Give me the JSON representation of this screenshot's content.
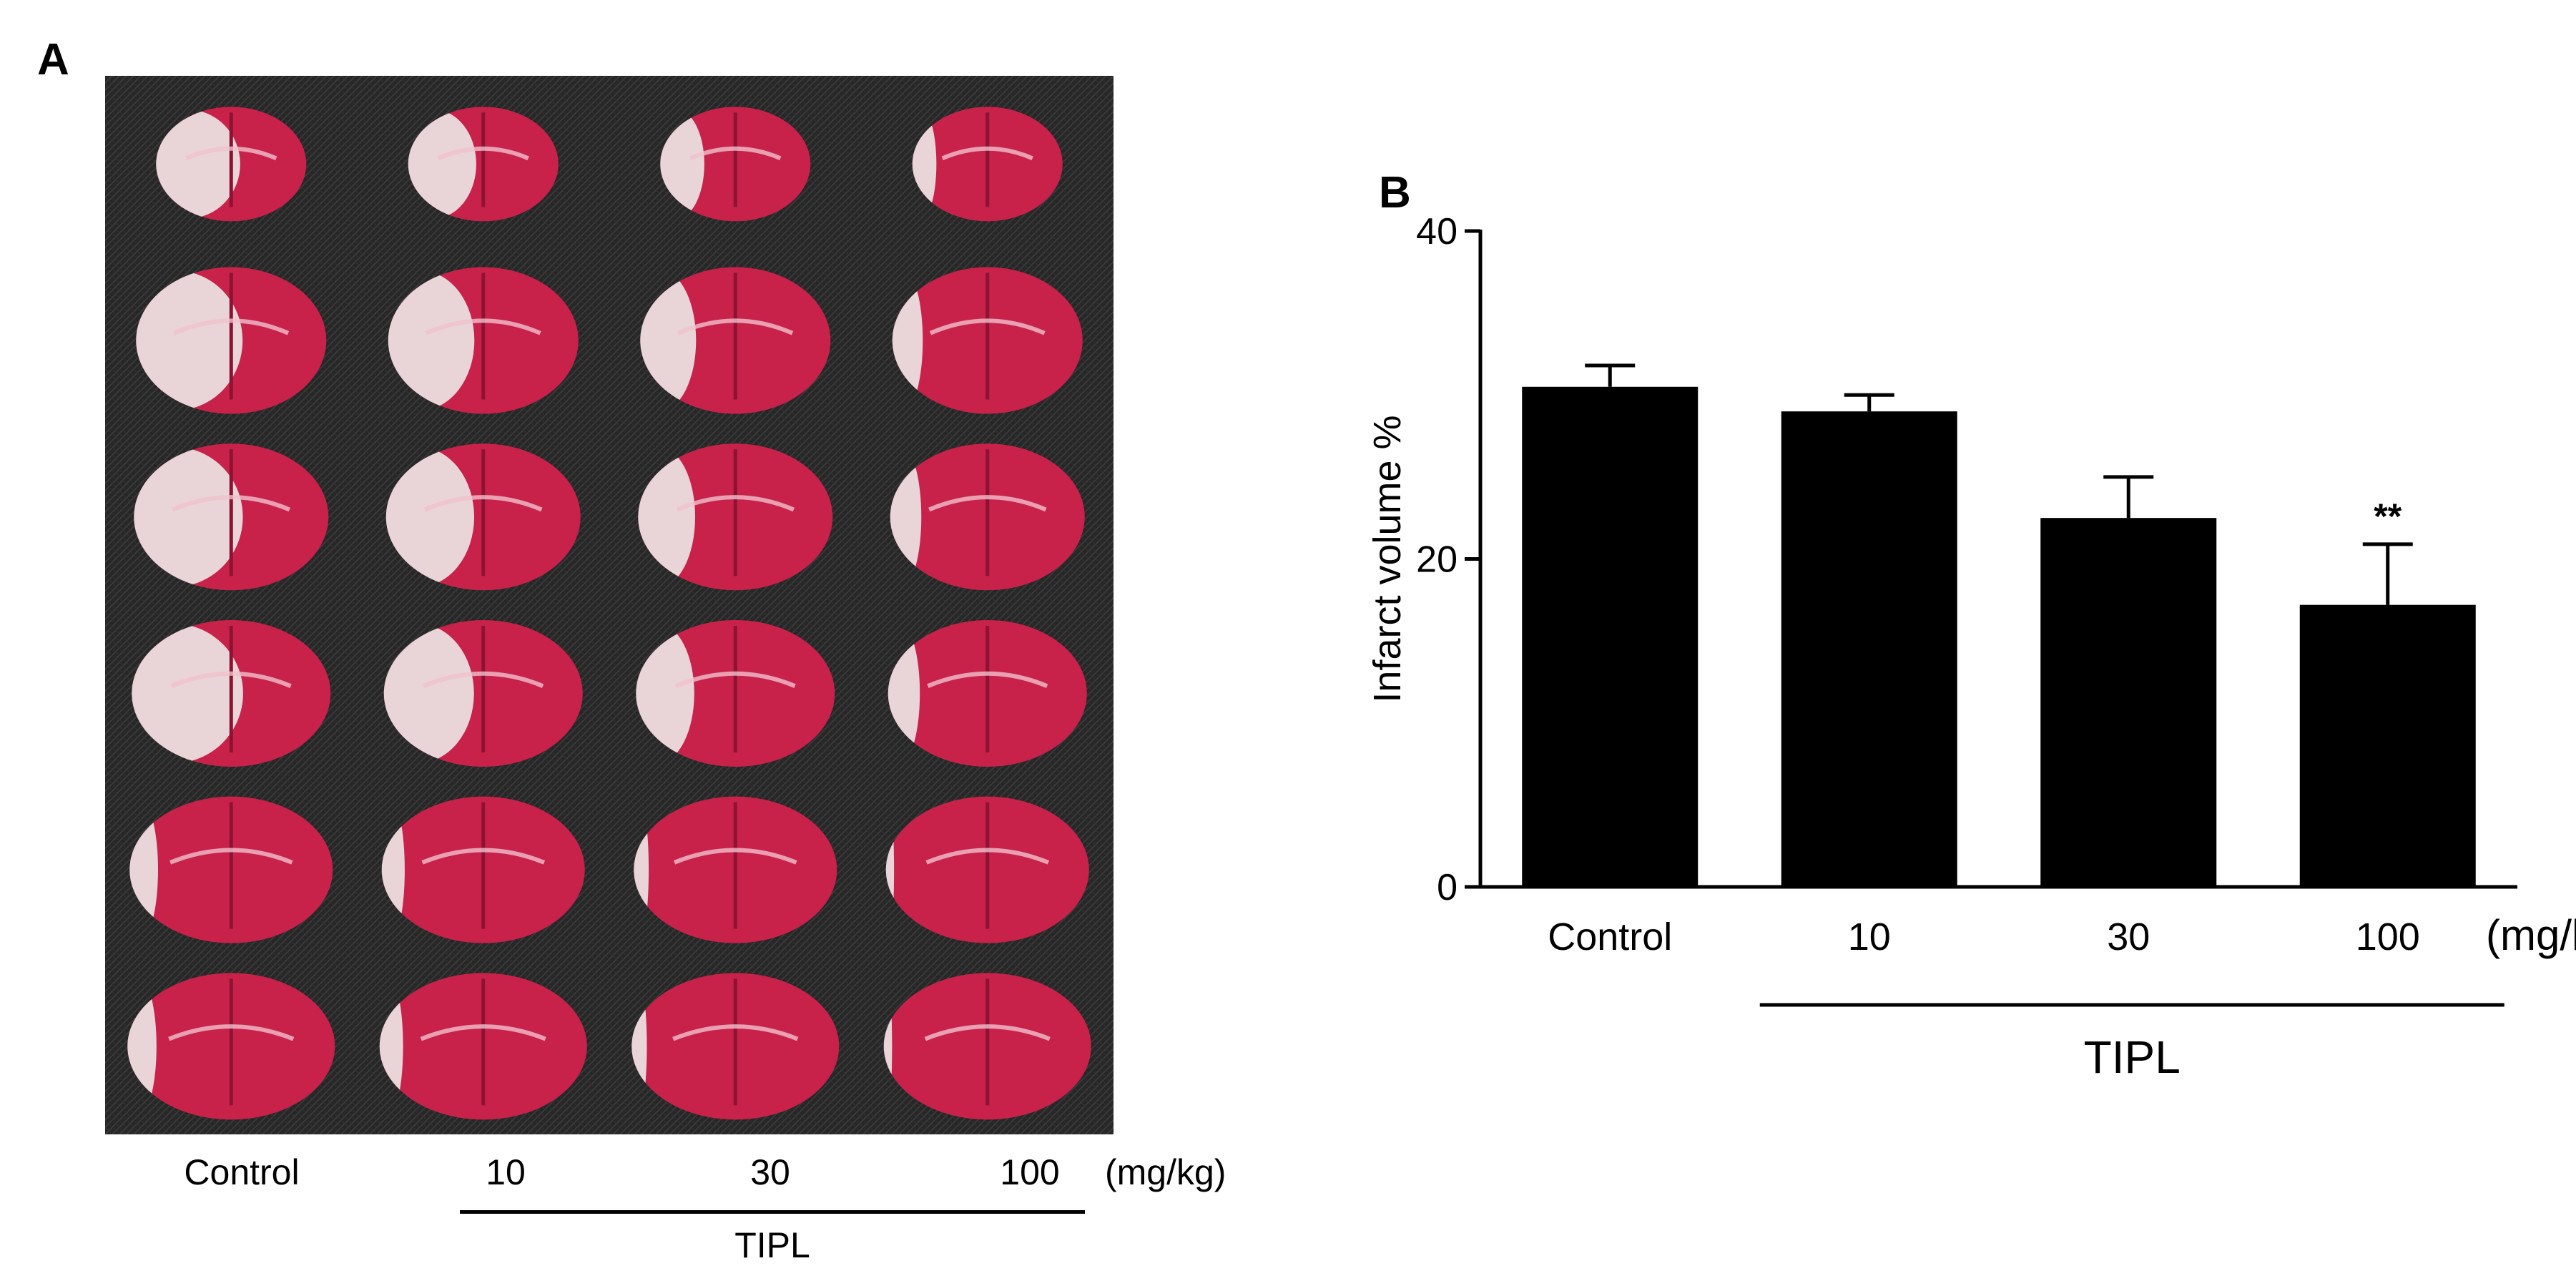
{
  "panel_a": {
    "letter": "A",
    "group_labels": [
      "Control",
      "10",
      "30",
      "100"
    ],
    "unit_label": "(mg/kg)",
    "treatment_label": "TIPL",
    "image_description": "TTC-stained coronal brain slices, 6 rows x 4 columns",
    "colors": {
      "tissue": "#c8214a",
      "infarct": "#ece4e4",
      "background": "#262626"
    },
    "infarct_fraction_by_column": [
      0.42,
      0.34,
      0.22,
      0.12
    ]
  },
  "panel_b": {
    "letter": "B",
    "unit_label": "(mg/kg)",
    "treatment_label": "TIPL",
    "significance": [
      {
        "category": "100",
        "text": "**"
      }
    ]
  },
  "chart_data": {
    "type": "bar",
    "categories": [
      "Control",
      "10",
      "30",
      "100"
    ],
    "values": [
      30.5,
      29.0,
      22.5,
      17.2
    ],
    "error_bars": [
      1.3,
      1.0,
      2.5,
      3.7
    ],
    "ylabel": "Infarct volume %",
    "xlabel": "",
    "ylim": [
      0,
      40
    ],
    "yticks": [
      0,
      20,
      40
    ],
    "bar_color": "#000000",
    "grid": false
  }
}
